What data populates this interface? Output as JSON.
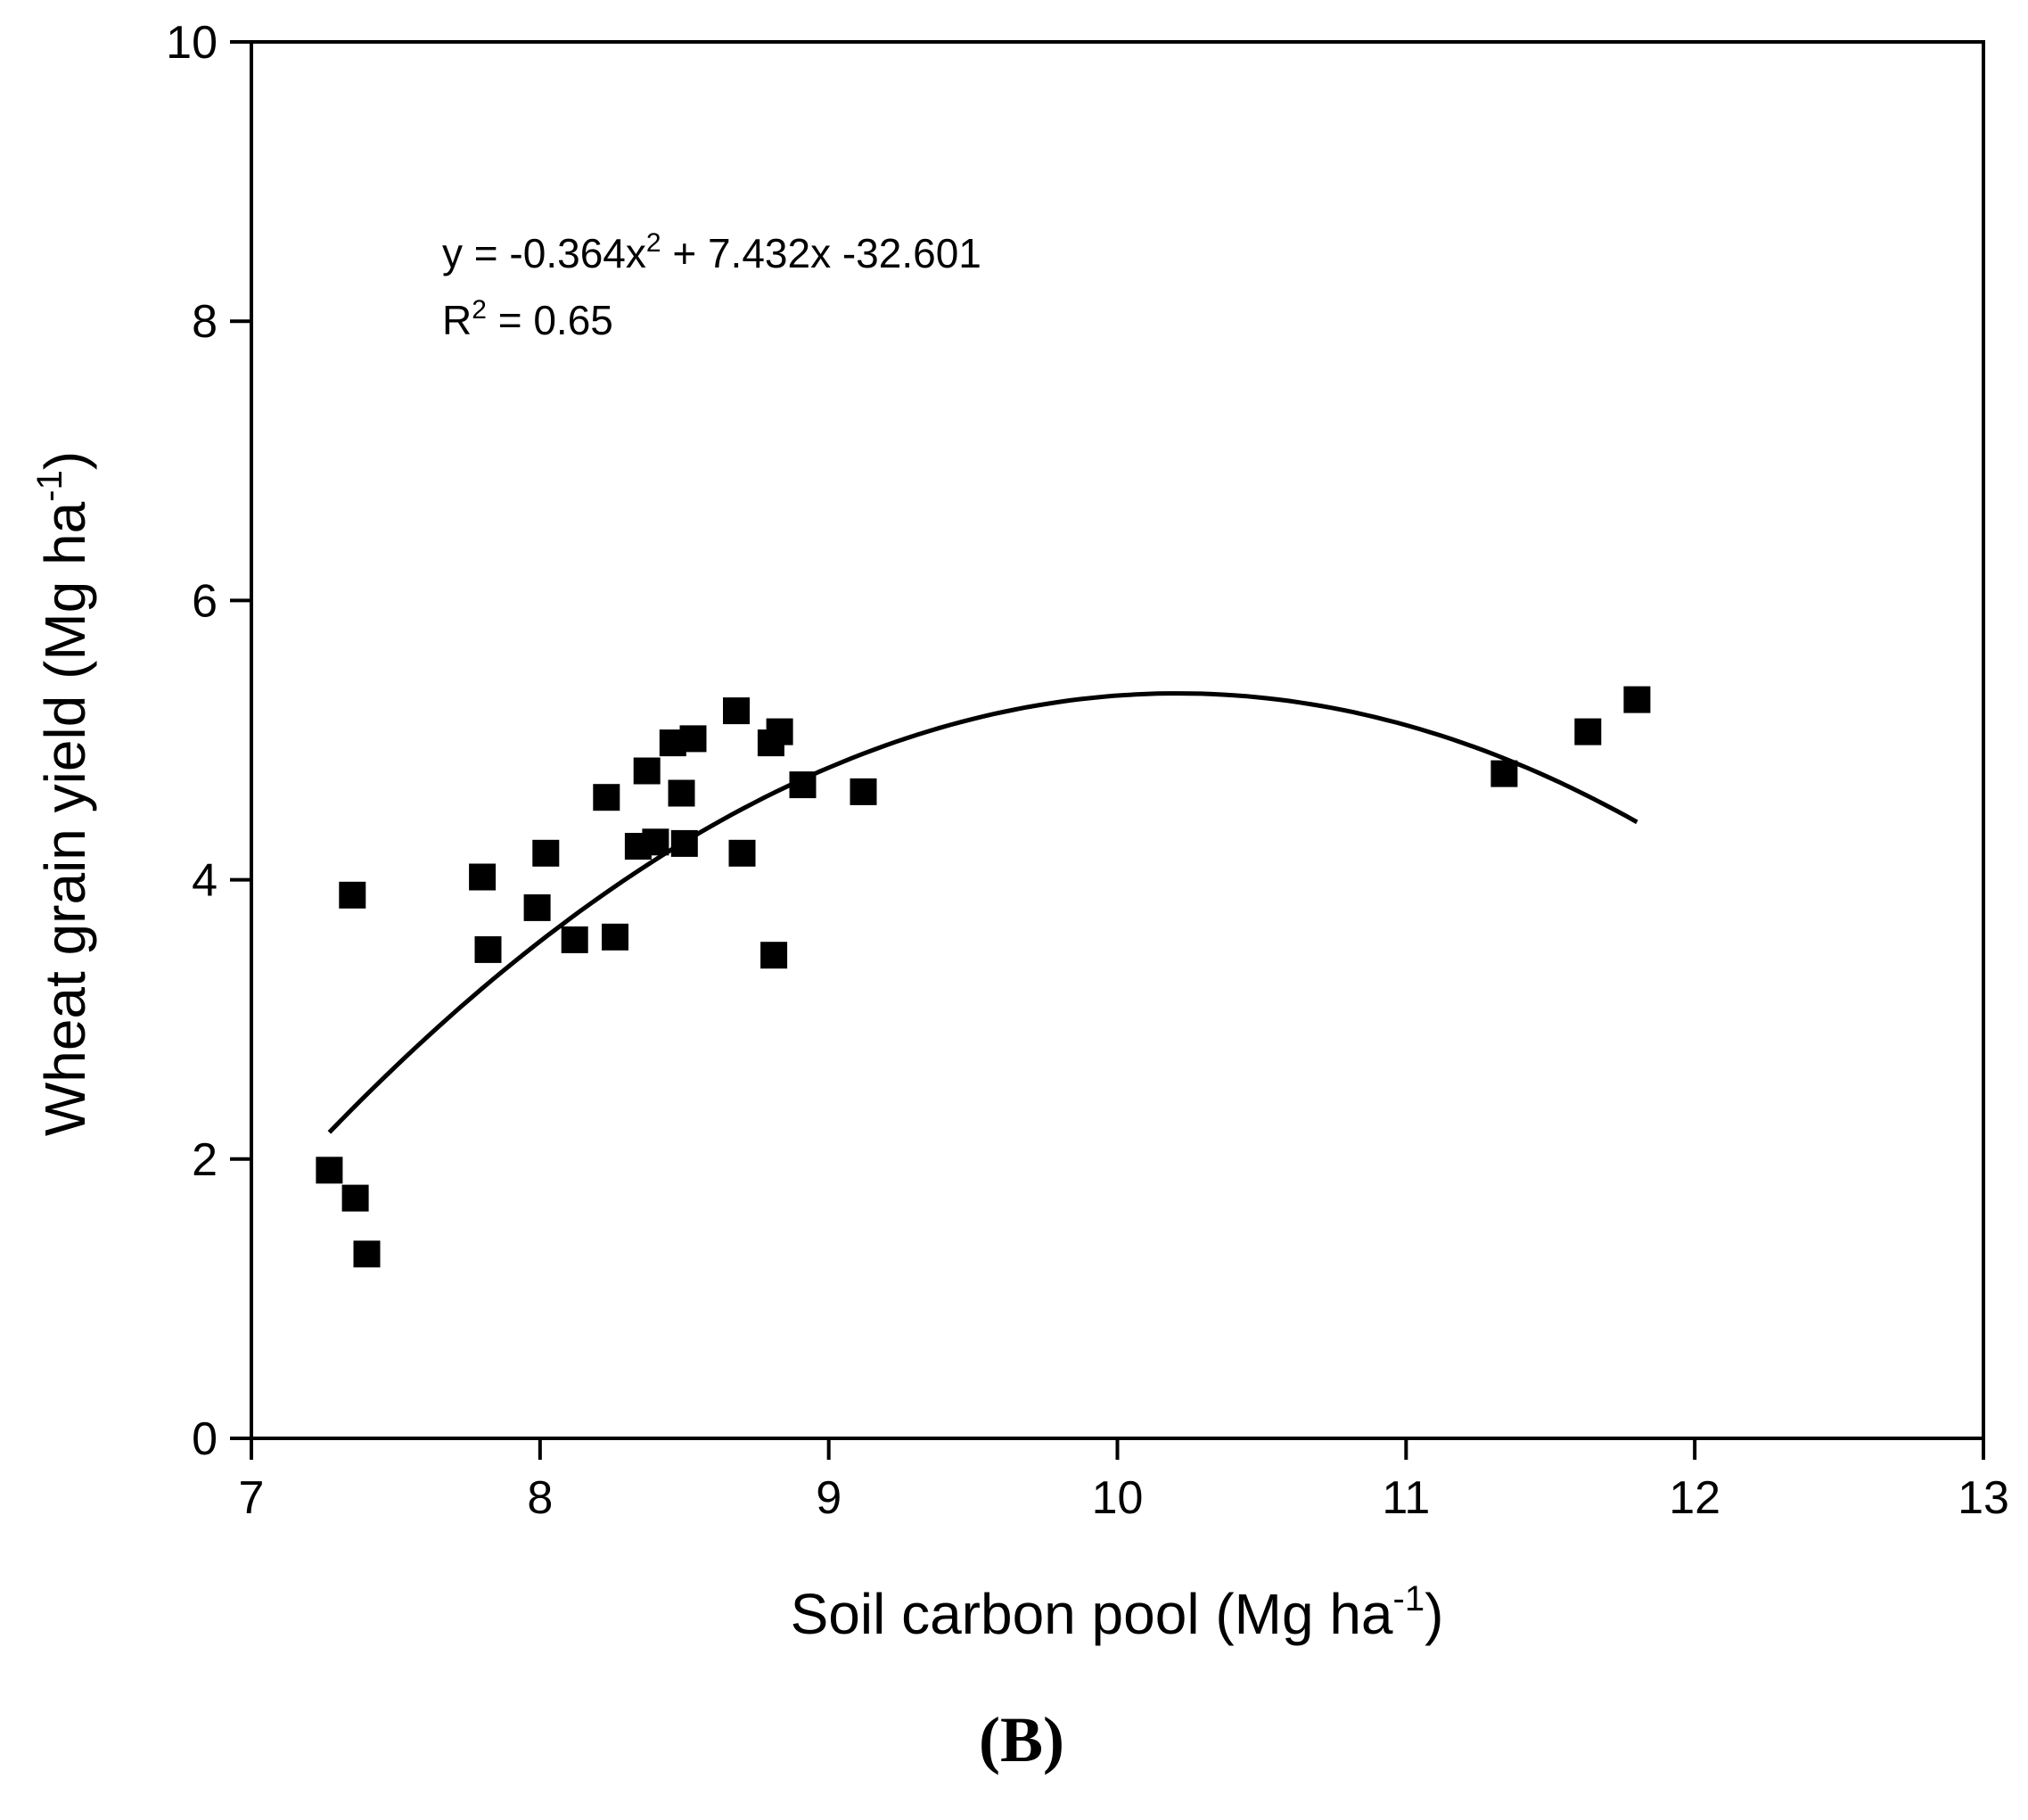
{
  "chart_data": {
    "type": "scatter",
    "xlabel": {
      "main": "Soil carbon pool (Mg ha",
      "sup": "-1",
      "close": ")"
    },
    "ylabel": {
      "main": "Wheat grain yield (Mg ha",
      "sup": "-1",
      "close": ")"
    },
    "xlim": [
      7,
      13
    ],
    "ylim": [
      0,
      10
    ],
    "xticks": [
      "7",
      "8",
      "9",
      "10",
      "11",
      "12",
      "13"
    ],
    "yticks": [
      "0",
      "2",
      "4",
      "6",
      "8",
      "10"
    ],
    "grid": false,
    "points": [
      [
        7.27,
        1.92
      ],
      [
        7.36,
        1.72
      ],
      [
        7.4,
        1.32
      ],
      [
        7.35,
        3.89
      ],
      [
        7.8,
        4.02
      ],
      [
        7.82,
        3.5
      ],
      [
        7.99,
        3.8
      ],
      [
        8.02,
        4.19
      ],
      [
        8.12,
        3.57
      ],
      [
        8.23,
        4.59
      ],
      [
        8.26,
        3.59
      ],
      [
        8.34,
        4.24
      ],
      [
        8.37,
        4.78
      ],
      [
        8.4,
        4.27
      ],
      [
        8.46,
        4.98
      ],
      [
        8.49,
        4.62
      ],
      [
        8.5,
        4.26
      ],
      [
        8.53,
        5.01
      ],
      [
        8.68,
        5.21
      ],
      [
        8.7,
        4.19
      ],
      [
        8.8,
        4.98
      ],
      [
        8.81,
        3.46
      ],
      [
        8.83,
        5.06
      ],
      [
        8.91,
        4.68
      ],
      [
        9.12,
        4.63
      ],
      [
        11.34,
        4.76
      ],
      [
        11.63,
        5.06
      ],
      [
        11.8,
        5.29
      ]
    ],
    "fit": {
      "a": -0.364,
      "b": 7.432,
      "c": -32.601,
      "x_range": [
        7.27,
        11.8
      ]
    },
    "annotation": {
      "eq_pre": "y = -0.364x",
      "eq_sup": "2",
      "eq_post": " + 7.432x -32.601",
      "r2_pre": "R",
      "r2_sup": "2",
      "r2_post": " = 0.65"
    },
    "panel_label": "(B)"
  }
}
